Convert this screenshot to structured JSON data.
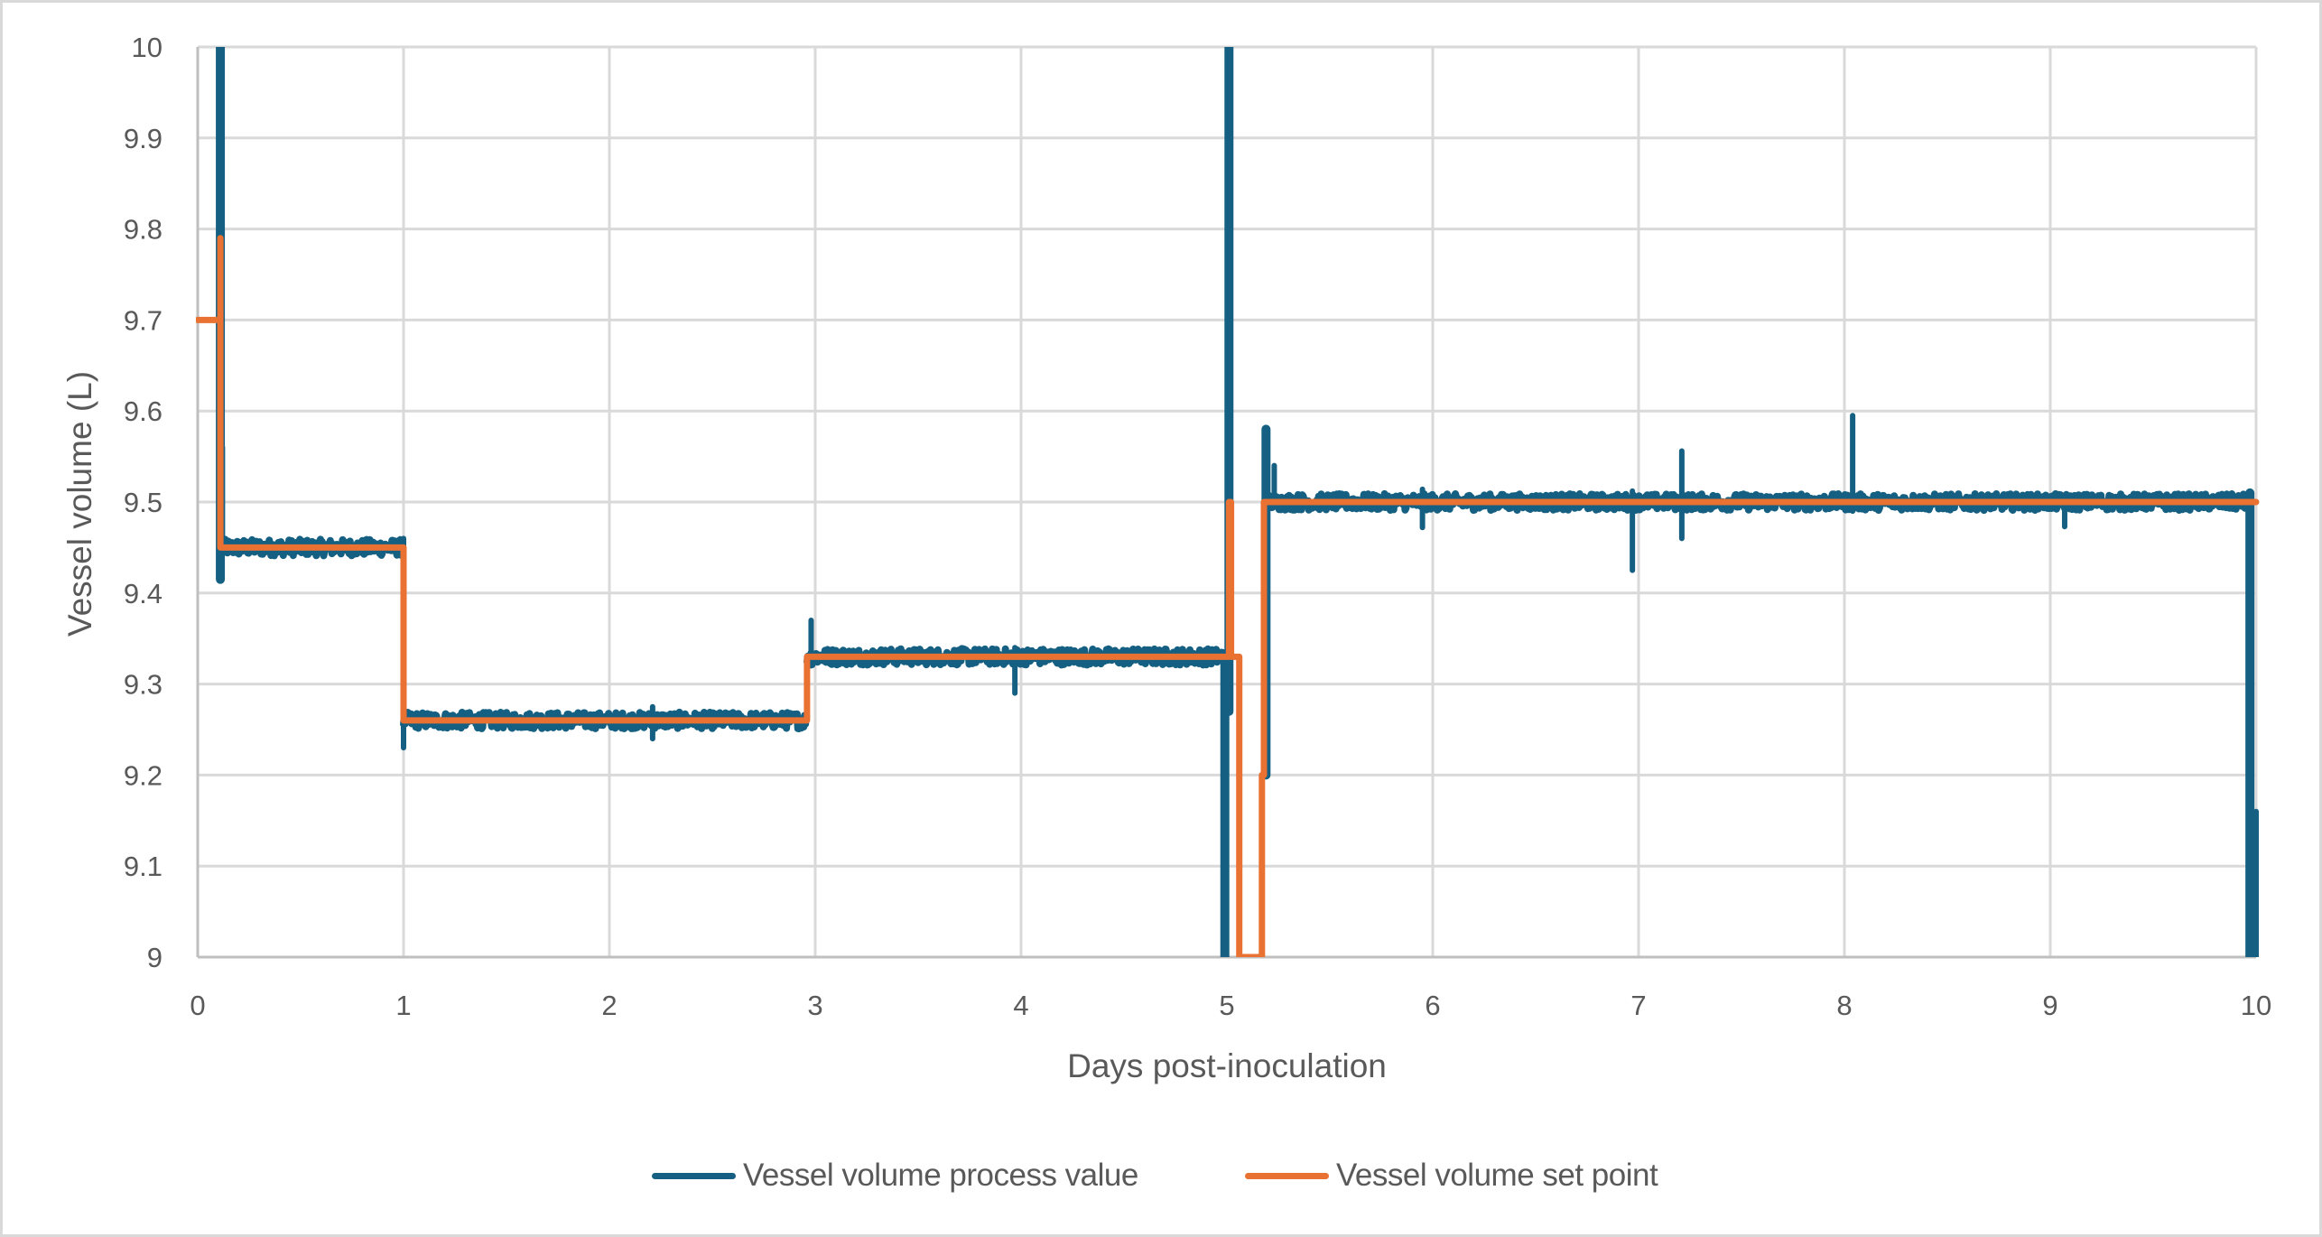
{
  "chart_data": {
    "type": "line",
    "title": "",
    "xlabel": "Days post-inoculation",
    "ylabel": "Vessel volume (L)",
    "xlim": [
      0,
      10
    ],
    "ylim": [
      9,
      10
    ],
    "x_ticks": [
      "0",
      "1",
      "2",
      "3",
      "4",
      "5",
      "6",
      "7",
      "8",
      "9",
      "10"
    ],
    "y_ticks": [
      "9",
      "9.1",
      "9.2",
      "9.3",
      "9.4",
      "9.5",
      "9.6",
      "9.7",
      "9.8",
      "9.9",
      "10"
    ],
    "grid": true,
    "legend_position": "bottom",
    "colors": {
      "process_value": "#156082",
      "set_point": "#E97132",
      "grid": "#d9d9d9",
      "axis": "#bfbfbf",
      "text": "#595959"
    },
    "series": [
      {
        "name": "Vessel volume process value",
        "color": "#156082",
        "description": "Noisy measured volume tracking the set point; band approx ±0.01 L",
        "segments": [
          {
            "x_start": 0.12,
            "x_end": 1.0,
            "level": 9.45
          },
          {
            "x_start": 1.0,
            "x_end": 2.96,
            "level": 9.26
          },
          {
            "x_start": 2.96,
            "x_end": 4.99,
            "level": 9.33
          },
          {
            "x_start": 5.19,
            "x_end": 9.97,
            "level": 9.5
          }
        ],
        "spikes": [
          {
            "x": 0.11,
            "low": 9.415,
            "high": 10.0
          },
          {
            "x": 0.12,
            "low": 9.45,
            "high": 9.56
          },
          {
            "x": 1.0,
            "low": 9.23,
            "high": 9.46
          },
          {
            "x": 2.21,
            "low": 9.24,
            "high": 9.275
          },
          {
            "x": 2.98,
            "low": 9.32,
            "high": 9.37
          },
          {
            "x": 3.97,
            "low": 9.29,
            "high": 9.34
          },
          {
            "x": 4.99,
            "low": 9.0,
            "high": 9.33
          },
          {
            "x": 5.01,
            "low": 9.27,
            "high": 10.0
          },
          {
            "x": 5.19,
            "low": 9.2,
            "high": 9.58
          },
          {
            "x": 5.23,
            "low": 9.5,
            "high": 9.54
          },
          {
            "x": 5.95,
            "low": 9.472,
            "high": 9.514
          },
          {
            "x": 6.97,
            "low": 9.425,
            "high": 9.512
          },
          {
            "x": 7.21,
            "low": 9.46,
            "high": 9.556
          },
          {
            "x": 8.04,
            "low": 9.49,
            "high": 9.595
          },
          {
            "x": 9.07,
            "low": 9.473,
            "high": 9.5
          },
          {
            "x": 9.97,
            "low": 9.0,
            "high": 9.51
          },
          {
            "x": 10.0,
            "low": 9.0,
            "high": 9.16
          }
        ]
      },
      {
        "name": "Vessel volume set point",
        "color": "#E97132",
        "points": [
          [
            0.0,
            9.7
          ],
          [
            0.11,
            9.7
          ],
          [
            0.11,
            9.79
          ],
          [
            0.11,
            9.45
          ],
          [
            1.0,
            9.45
          ],
          [
            1.0,
            9.26
          ],
          [
            2.96,
            9.26
          ],
          [
            2.96,
            9.33
          ],
          [
            5.01,
            9.33
          ],
          [
            5.01,
            9.5
          ],
          [
            5.02,
            9.5
          ],
          [
            5.02,
            9.33
          ],
          [
            5.06,
            9.33
          ],
          [
            5.06,
            9.0
          ],
          [
            5.17,
            9.0
          ],
          [
            5.17,
            9.2
          ],
          [
            5.18,
            9.2
          ],
          [
            5.18,
            9.5
          ],
          [
            10.0,
            9.5
          ]
        ]
      }
    ]
  },
  "legend": {
    "items": [
      {
        "label": "Vessel volume process value",
        "color": "#156082"
      },
      {
        "label": "Vessel volume set point",
        "color": "#E97132"
      }
    ]
  }
}
